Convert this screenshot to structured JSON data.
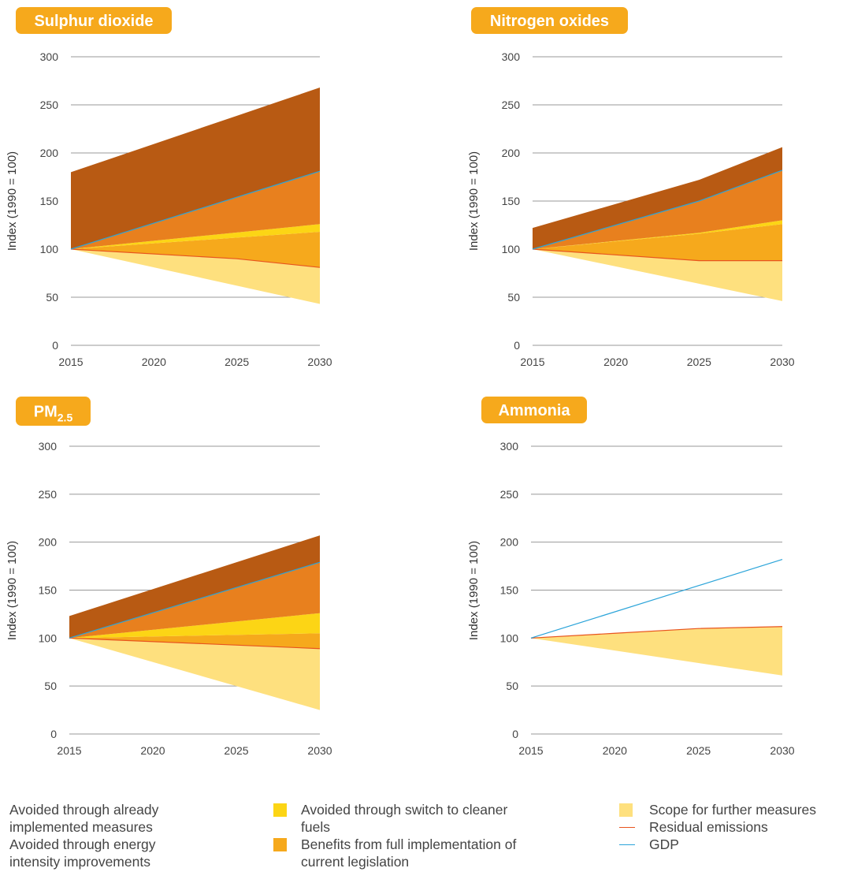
{
  "colors": {
    "implemented": "#B85A13",
    "energy_intensity": "#E8801E",
    "cleaner_fuels": "#FCD515",
    "legislation": "#F6A91C",
    "further_scope": "#FEE07E",
    "residual": "#E8541E",
    "gdp": "#2BA4D9",
    "badge": "#F6A91C",
    "grid": "#999999"
  },
  "legend": {
    "implemented": "Avoided through already implemented measures",
    "energy_intensity": "Avoided through energy intensity improvements",
    "cleaner_fuels": "Avoided through switch to cleaner fuels",
    "legislation": "Benefits from full implementation of current legislation",
    "further_scope": "Scope for further measures",
    "residual": "Residual emissions",
    "gdp": "GDP"
  },
  "chart_data": [
    {
      "type": "area",
      "title": "Sulphur dioxide",
      "title_sub": "",
      "ylabel": "Index  (1990 = 100)",
      "x": [
        2015,
        2030
      ],
      "xticks": [
        2015,
        2020,
        2025,
        2030
      ],
      "yticks": [
        0,
        50,
        100,
        150,
        200,
        250,
        300
      ],
      "ylim": [
        0,
        300
      ],
      "grid": "horizontal",
      "boundaries": {
        "scope_bottom": [
          [
            2015,
            100
          ],
          [
            2030,
            43
          ]
        ],
        "residual": [
          [
            2015,
            100
          ],
          [
            2025,
            90
          ],
          [
            2030,
            81
          ]
        ],
        "legislation_top": [
          [
            2015,
            100
          ],
          [
            2030,
            118
          ]
        ],
        "cleaner_fuels_top": [
          [
            2015,
            100
          ],
          [
            2030,
            126
          ]
        ],
        "gdp": [
          [
            2015,
            100
          ],
          [
            2030,
            181
          ]
        ],
        "total_top": [
          [
            2015,
            180
          ],
          [
            2030,
            268
          ]
        ]
      }
    },
    {
      "type": "area",
      "title": "Nitrogen oxides",
      "title_sub": "",
      "ylabel": "Index  (1990 = 100)",
      "x": [
        2015,
        2030
      ],
      "xticks": [
        2015,
        2020,
        2025,
        2030
      ],
      "yticks": [
        0,
        50,
        100,
        150,
        200,
        250,
        300
      ],
      "ylim": [
        0,
        300
      ],
      "grid": "horizontal",
      "boundaries": {
        "scope_bottom": [
          [
            2015,
            100
          ],
          [
            2030,
            46
          ]
        ],
        "residual": [
          [
            2015,
            100
          ],
          [
            2025,
            88
          ],
          [
            2030,
            88
          ]
        ],
        "legislation_top": [
          [
            2015,
            100
          ],
          [
            2025,
            116
          ],
          [
            2030,
            126
          ]
        ],
        "cleaner_fuels_top": [
          [
            2015,
            100
          ],
          [
            2025,
            117
          ],
          [
            2030,
            130
          ]
        ],
        "gdp": [
          [
            2015,
            100
          ],
          [
            2025,
            150
          ],
          [
            2030,
            182
          ]
        ],
        "total_top": [
          [
            2015,
            122
          ],
          [
            2025,
            172
          ],
          [
            2030,
            206
          ]
        ]
      }
    },
    {
      "type": "area",
      "title": "PM",
      "title_sub": "2.5",
      "ylabel": "Index  (1990 = 100)",
      "x": [
        2015,
        2030
      ],
      "xticks": [
        2015,
        2020,
        2025,
        2030
      ],
      "yticks": [
        0,
        50,
        100,
        150,
        200,
        250,
        300
      ],
      "ylim": [
        0,
        300
      ],
      "grid": "horizontal",
      "boundaries": {
        "scope_bottom": [
          [
            2015,
            100
          ],
          [
            2030,
            25
          ]
        ],
        "residual": [
          [
            2015,
            100
          ],
          [
            2030,
            89
          ]
        ],
        "legislation_top": [
          [
            2015,
            100
          ],
          [
            2030,
            105
          ]
        ],
        "cleaner_fuels_top": [
          [
            2015,
            100
          ],
          [
            2030,
            126
          ]
        ],
        "gdp": [
          [
            2015,
            100
          ],
          [
            2030,
            179
          ]
        ],
        "total_top": [
          [
            2015,
            123
          ],
          [
            2030,
            207
          ]
        ]
      }
    },
    {
      "type": "area",
      "title": "Ammonia",
      "title_sub": "",
      "ylabel": "Index  (1990 = 100)",
      "x": [
        2015,
        2030
      ],
      "xticks": [
        2015,
        2020,
        2025,
        2030
      ],
      "yticks": [
        0,
        50,
        100,
        150,
        200,
        250,
        300
      ],
      "ylim": [
        0,
        300
      ],
      "grid": "horizontal",
      "boundaries": {
        "scope_bottom": [
          [
            2015,
            100
          ],
          [
            2030,
            61
          ]
        ],
        "residual": [
          [
            2015,
            100
          ],
          [
            2020,
            105
          ],
          [
            2025,
            110
          ],
          [
            2030,
            112
          ]
        ],
        "gdp": [
          [
            2015,
            100
          ],
          [
            2030,
            182
          ]
        ]
      }
    }
  ]
}
